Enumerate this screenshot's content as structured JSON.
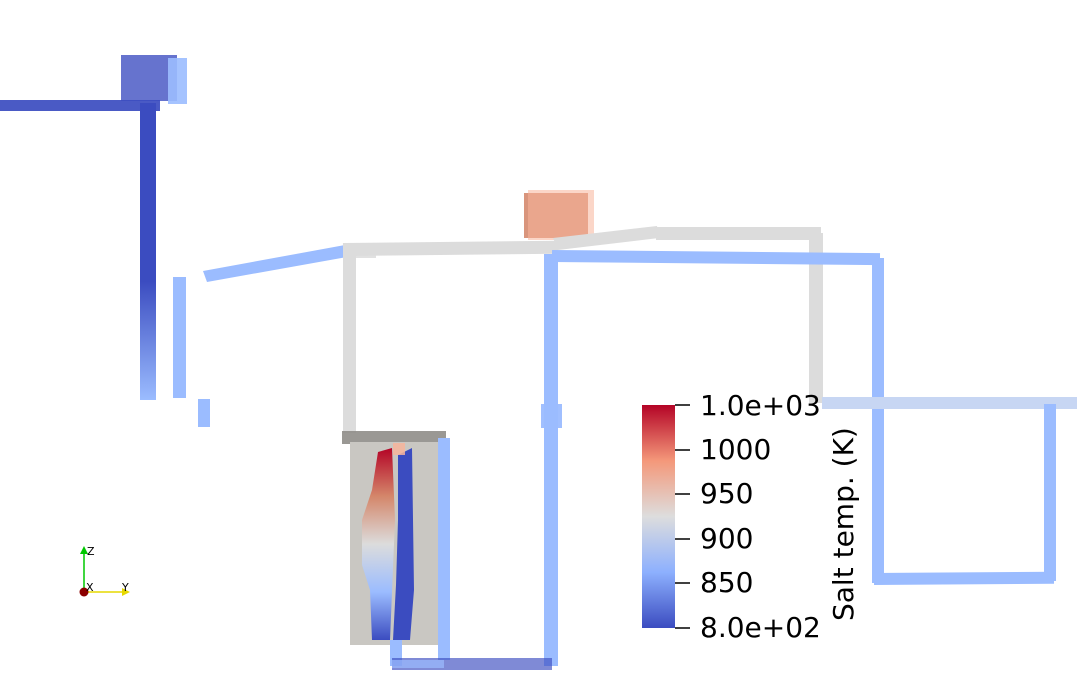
{
  "colormap": {
    "title": "Salt temp. (K)",
    "range": [
      800,
      1000
    ],
    "stops": [
      "#3b4cc0",
      "#8db0fe",
      "#dddddd",
      "#f4987a",
      "#b40426"
    ],
    "tick_labels": [
      "1.0e+03",
      "1000",
      "950",
      "900",
      "850",
      "8.0e+02"
    ]
  },
  "orientation_axes": {
    "z_label": "Z",
    "x_label": "X",
    "y_label": "Y",
    "colors": {
      "z": "#00c800",
      "x": "#8b0000",
      "y": "#e6d800"
    }
  },
  "colors": {
    "cold": "#3b4cc0",
    "cool": "#9bbcff",
    "mid_cool": "#c7d6f3",
    "neutral": "#dcdcdc",
    "warm": "#d4866a",
    "warm_light": "#f7b49b",
    "vessel": "#c9c7c2",
    "vessel_dark": "#8f8d88",
    "hot": "#b40426"
  }
}
